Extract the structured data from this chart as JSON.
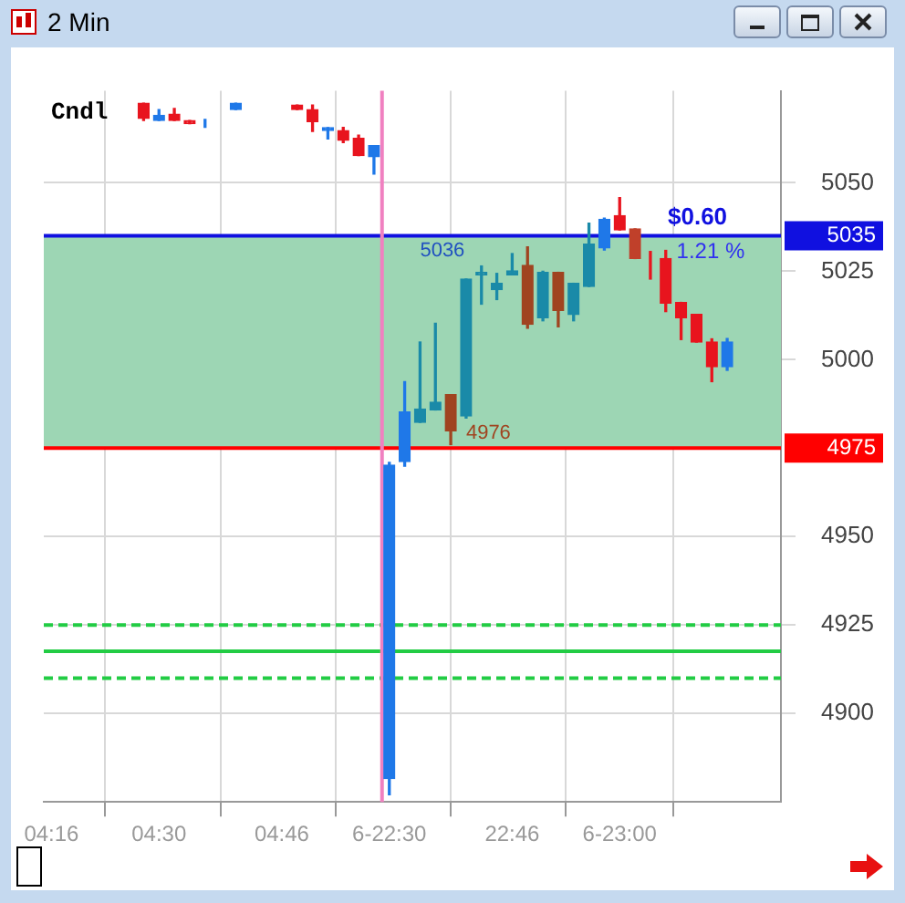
{
  "chart_data": {
    "type": "candlestick",
    "title": "2 Min",
    "categories": [
      "04:16",
      null,
      null,
      null,
      null,
      null,
      null,
      "04:30",
      null,
      null,
      null,
      null,
      null,
      null,
      null,
      "04:46",
      null,
      null,
      null,
      null,
      null,
      null,
      "6-22:30",
      null,
      null,
      null,
      null,
      null,
      null,
      null,
      "22:46",
      null,
      null,
      null,
      null,
      null,
      null,
      "6-23:00",
      null,
      null,
      null,
      null,
      null,
      null,
      null,
      null,
      null,
      null
    ],
    "ohlc": [
      null,
      null,
      null,
      null,
      null,
      null,
      [
        5072.5,
        5072.5,
        5067.6,
        5068.2
      ],
      [
        5067.6,
        5070.7,
        5067.6,
        5069.1
      ],
      [
        5069.4,
        5071,
        5067.6,
        5067.6
      ],
      [
        5067.6,
        5067.6,
        5066.7,
        5066.7
      ],
      [
        5067,
        5067.9,
        5065.7,
        5067
      ],
      null,
      [
        5070.7,
        5072.5,
        5070.7,
        5072.5
      ],
      null,
      null,
      null,
      [
        5072,
        5072,
        5070.7,
        5070.7
      ],
      [
        5070.7,
        5072,
        5064.5,
        5067.3
      ],
      [
        5064.8,
        5065.6,
        5062.4,
        5065.6
      ],
      [
        5064.8,
        5065.7,
        5061.4,
        5062
      ],
      [
        5062.6,
        5063.5,
        5057.7,
        5057.7
      ],
      [
        5057.4,
        5060.5,
        5052.5,
        5060.5
      ],
      [
        4881.6,
        4971,
        4877,
        4970.2
      ],
      [
        4971.2,
        4993.8,
        4969.9,
        4985.2
      ],
      [
        4982.3,
        5005,
        4982.3,
        4986.1
      ],
      [
        4985.8,
        5010.3,
        4985.8,
        4988
      ],
      [
        4990.1,
        4990.1,
        4976,
        4979.9
      ],
      [
        4984.1,
        5022.8,
        4983.5,
        5022.8
      ],
      [
        5024,
        5026.5,
        5015.7,
        5024.7
      ],
      [
        5019.8,
        5024.4,
        5017,
        5021.6
      ],
      [
        5024,
        5030,
        5024,
        5025.1
      ],
      [
        5026.7,
        5031.9,
        5008.9,
        5010
      ],
      [
        5011.9,
        5025,
        5011,
        5024.7
      ],
      [
        5024.7,
        5024.7,
        5009.3,
        5013.9
      ],
      [
        5012.8,
        5021.6,
        5011,
        5021.6
      ],
      [
        5020.7,
        5038.6,
        5020.7,
        5032.7
      ],
      [
        5031.6,
        5040,
        5031,
        5039.7
      ],
      [
        5040.7,
        5045.8,
        5036.7,
        5036.7
      ],
      [
        5037,
        5037,
        5028.6,
        5028.6
      ],
      [
        5029.3,
        5030.6,
        5022.8,
        5029.3
      ],
      [
        5028.6,
        5030.9,
        5013.6,
        5016
      ],
      [
        5016.2,
        5016.2,
        5005.7,
        5011.9
      ],
      [
        5012.8,
        5012.8,
        5005,
        5005
      ],
      [
        5005,
        5005.9,
        4993.8,
        4998
      ],
      [
        4998,
        5006,
        4997,
        5005
      ],
      null,
      null,
      null
    ],
    "colors": [
      null,
      null,
      null,
      null,
      null,
      null,
      "#e8141e",
      "#1f78e8",
      "#e8141e",
      "#e8141e",
      "#1f78e8",
      null,
      "#1f78e8",
      null,
      null,
      null,
      "#e8141e",
      "#e8141e",
      "#1f78e8",
      "#e8141e",
      "#e8141e",
      "#1f78e8",
      "#1f78e8",
      "#1f78e8",
      "#1a8aa8",
      "#1a8aa8",
      "#a04420",
      "#1a8aa8",
      "#1a8aa8",
      "#1a8aa8",
      "#1a8aa8",
      "#a04420",
      "#1a8aa8",
      "#a04420",
      "#1a8aa8",
      "#1a8aa8",
      "#1f78e8",
      "#e8141e",
      "#c0402a",
      "#e8141e",
      "#e8141e",
      "#e8141e",
      "#e8141e",
      "#e8141e",
      "#1f78e8",
      null,
      null,
      null
    ],
    "ylim": [
      4875,
      5076
    ],
    "yticks": [
      4900,
      4925,
      4950,
      5000,
      5025,
      5050
    ],
    "grid": true,
    "legend": false,
    "ref_lines": [
      {
        "axis": "y",
        "value": 5035,
        "label": "5035",
        "color": "#1010e0"
      },
      {
        "axis": "y",
        "value": 4975,
        "label": "4975",
        "color": "#ff0000"
      },
      {
        "axis": "y",
        "value": 4925,
        "color": "#22cc44",
        "line_style": "dashed"
      },
      {
        "axis": "y",
        "value": 4917.6,
        "color": "#22cc44",
        "line_style": "solid"
      },
      {
        "axis": "y",
        "value": 4910,
        "color": "#22cc44",
        "line_style": "dashed"
      },
      {
        "axis": "x",
        "value": "6-22:30",
        "color": "#f080c0"
      }
    ],
    "bands": [
      {
        "axis": "y",
        "from": 4975,
        "to": 5035,
        "color": "#9dd6b4"
      }
    ],
    "annotations": [
      "Cndl",
      "5036",
      "4976",
      "$0.60",
      "1.21 %"
    ]
  }
}
